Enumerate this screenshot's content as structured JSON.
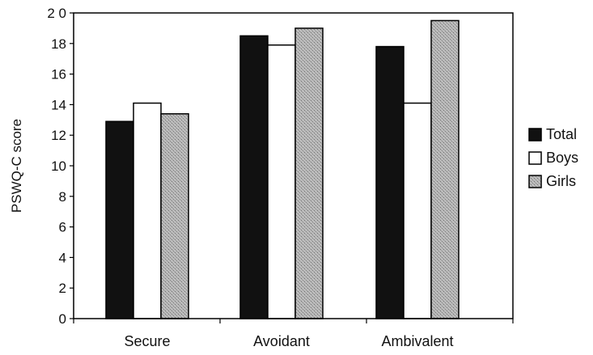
{
  "chart_data": {
    "type": "bar",
    "categories": [
      "Secure",
      "Avoidant",
      "Ambivalent"
    ],
    "series": [
      {
        "name": "Total",
        "values": [
          12.9,
          18.5,
          17.8
        ],
        "color": "#111111",
        "pattern": "solid"
      },
      {
        "name": "Boys",
        "values": [
          14.1,
          17.9,
          14.1
        ],
        "color": "#ffffff",
        "pattern": "outline"
      },
      {
        "name": "Girls",
        "values": [
          13.4,
          19.0,
          19.5
        ],
        "color": "#a8a8a8",
        "pattern": "stipple"
      }
    ],
    "title": "",
    "xlabel": "",
    "ylabel": "PSWQ-C score",
    "ylim": [
      0,
      20
    ],
    "yticks": [
      "0",
      "2",
      "4",
      "6",
      "8",
      "10",
      "12",
      "14",
      "16",
      "18",
      "2 0"
    ],
    "grid": false,
    "legend_position": "right"
  }
}
